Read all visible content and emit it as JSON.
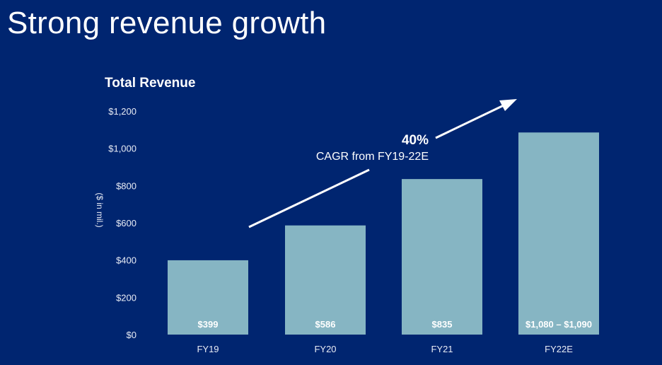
{
  "slide": {
    "title": "Strong revenue growth"
  },
  "chart_data": {
    "type": "bar",
    "title": "Total Revenue",
    "ylabel": "($ in mil.)",
    "xlabel": "",
    "ylim": [
      0,
      1200
    ],
    "yticks": [
      0,
      200,
      400,
      600,
      800,
      1000,
      1200
    ],
    "ytick_labels": [
      "$0",
      "$200",
      "$400",
      "$600",
      "$800",
      "$1,000",
      "$1,200"
    ],
    "categories": [
      "FY19",
      "FY20",
      "FY21",
      "FY22E"
    ],
    "values": [
      399,
      586,
      835,
      1085
    ],
    "data_labels": [
      "$399",
      "$586",
      "$835",
      "$1,080 – $1,090"
    ],
    "bar_color": "#86b5c3",
    "grid": false,
    "annotation": {
      "value": "40%",
      "text": "CAGR from FY19-22E"
    }
  }
}
